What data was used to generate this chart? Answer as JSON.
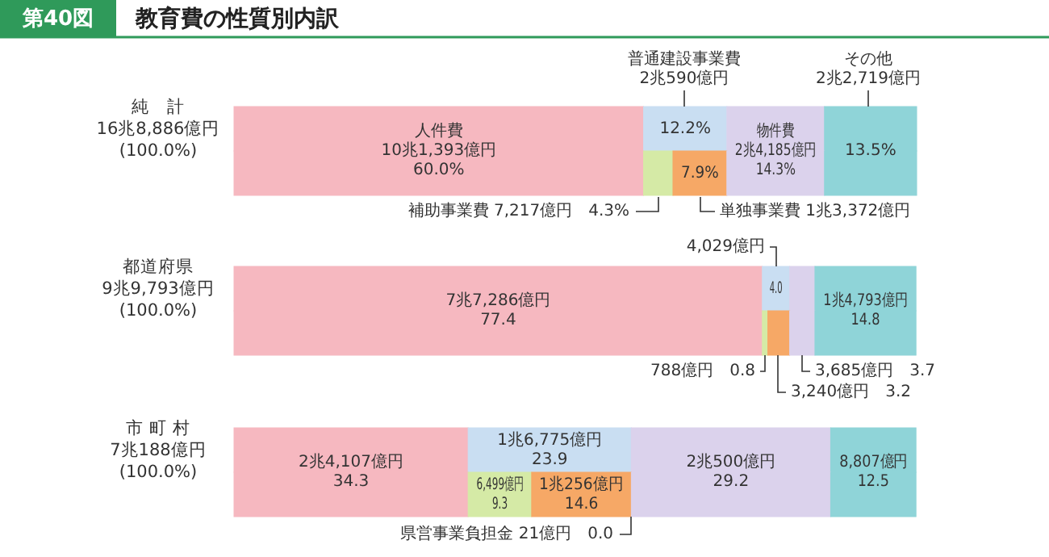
{
  "chart_data": {
    "type": "bar",
    "orientation": "horizontal",
    "stacked": true,
    "title": "教育費の性質別内訳",
    "categories": [
      "純　計\n16兆8,886億円\n(100.0%)",
      null,
      "都道府県\n9兆9,793億円\n(100.0%)",
      null,
      "市 町 村\n7兆188億円\n(100.0%)",
      null
    ],
    "xlim": [
      0,
      100
    ],
    "tick_labels": "y",
    "series": [
      {
        "color": "#f6b8c0",
        "values": [
          60.0,
          60.0,
          77.4,
          77.4,
          34.3,
          34.3
        ],
        "value_labels": [
          "人件費\n10兆1,393億円\n60.0%",
          null,
          "7兆7,286億円\n77.4",
          null,
          "2兆4,107億円\n34.3",
          null
        ]
      },
      {
        "color": "#c9def2",
        "values": [
          12.2,
          null,
          4.0,
          null,
          23.9,
          null
        ],
        "value_labels": [
          "12.2%",
          null,
          "4.0",
          null,
          "1兆6,775億円\n23.9",
          null
        ]
      },
      {
        "color": "#d5eaa6",
        "values": [
          null,
          4.3,
          null,
          0.8,
          null,
          9.3
        ],
        "value_labels": [
          null,
          null,
          null,
          null,
          null,
          "6,499億円\n9.3"
        ]
      },
      {
        "color": "#f6a866",
        "values": [
          null,
          7.9,
          null,
          3.2,
          null,
          14.6
        ],
        "value_labels": [
          null,
          "7.9%",
          null,
          null,
          null,
          "1兆256億円\n14.6"
        ]
      },
      {
        "color": "#e8b88a",
        "values": [
          null,
          null,
          null,
          null,
          null,
          0.0
        ],
        "value_labels": [
          null,
          null,
          null,
          null,
          null,
          null
        ]
      },
      {
        "color": "#dbd2ec",
        "values": [
          14.3,
          14.3,
          3.7,
          3.7,
          29.2,
          29.2
        ],
        "value_labels": [
          "物件費\n2兆4,185億円\n14.3%",
          null,
          null,
          null,
          "2兆500億円\n29.2",
          null
        ]
      },
      {
        "color": "#8fd4d8",
        "values": [
          13.5,
          13.5,
          14.8,
          14.8,
          12.5,
          12.5
        ],
        "value_labels": [
          "13.5%",
          null,
          "1兆4,793億円\n14.8",
          null,
          "8,807億円\n12.5",
          null
        ]
      }
    ],
    "annotations": [
      "第40図",
      "普通建設事業費\n2兆590億円",
      "その他\n2兆2,719億円",
      "補助事業費 7,217億円　4.3%",
      "単独事業費 1兆3,372億円",
      "4,029億円",
      "788億円　0.8",
      "3,240億円　3.2",
      "3,685億円　3.7",
      "県営事業負担金 21億円　0.0"
    ]
  }
}
